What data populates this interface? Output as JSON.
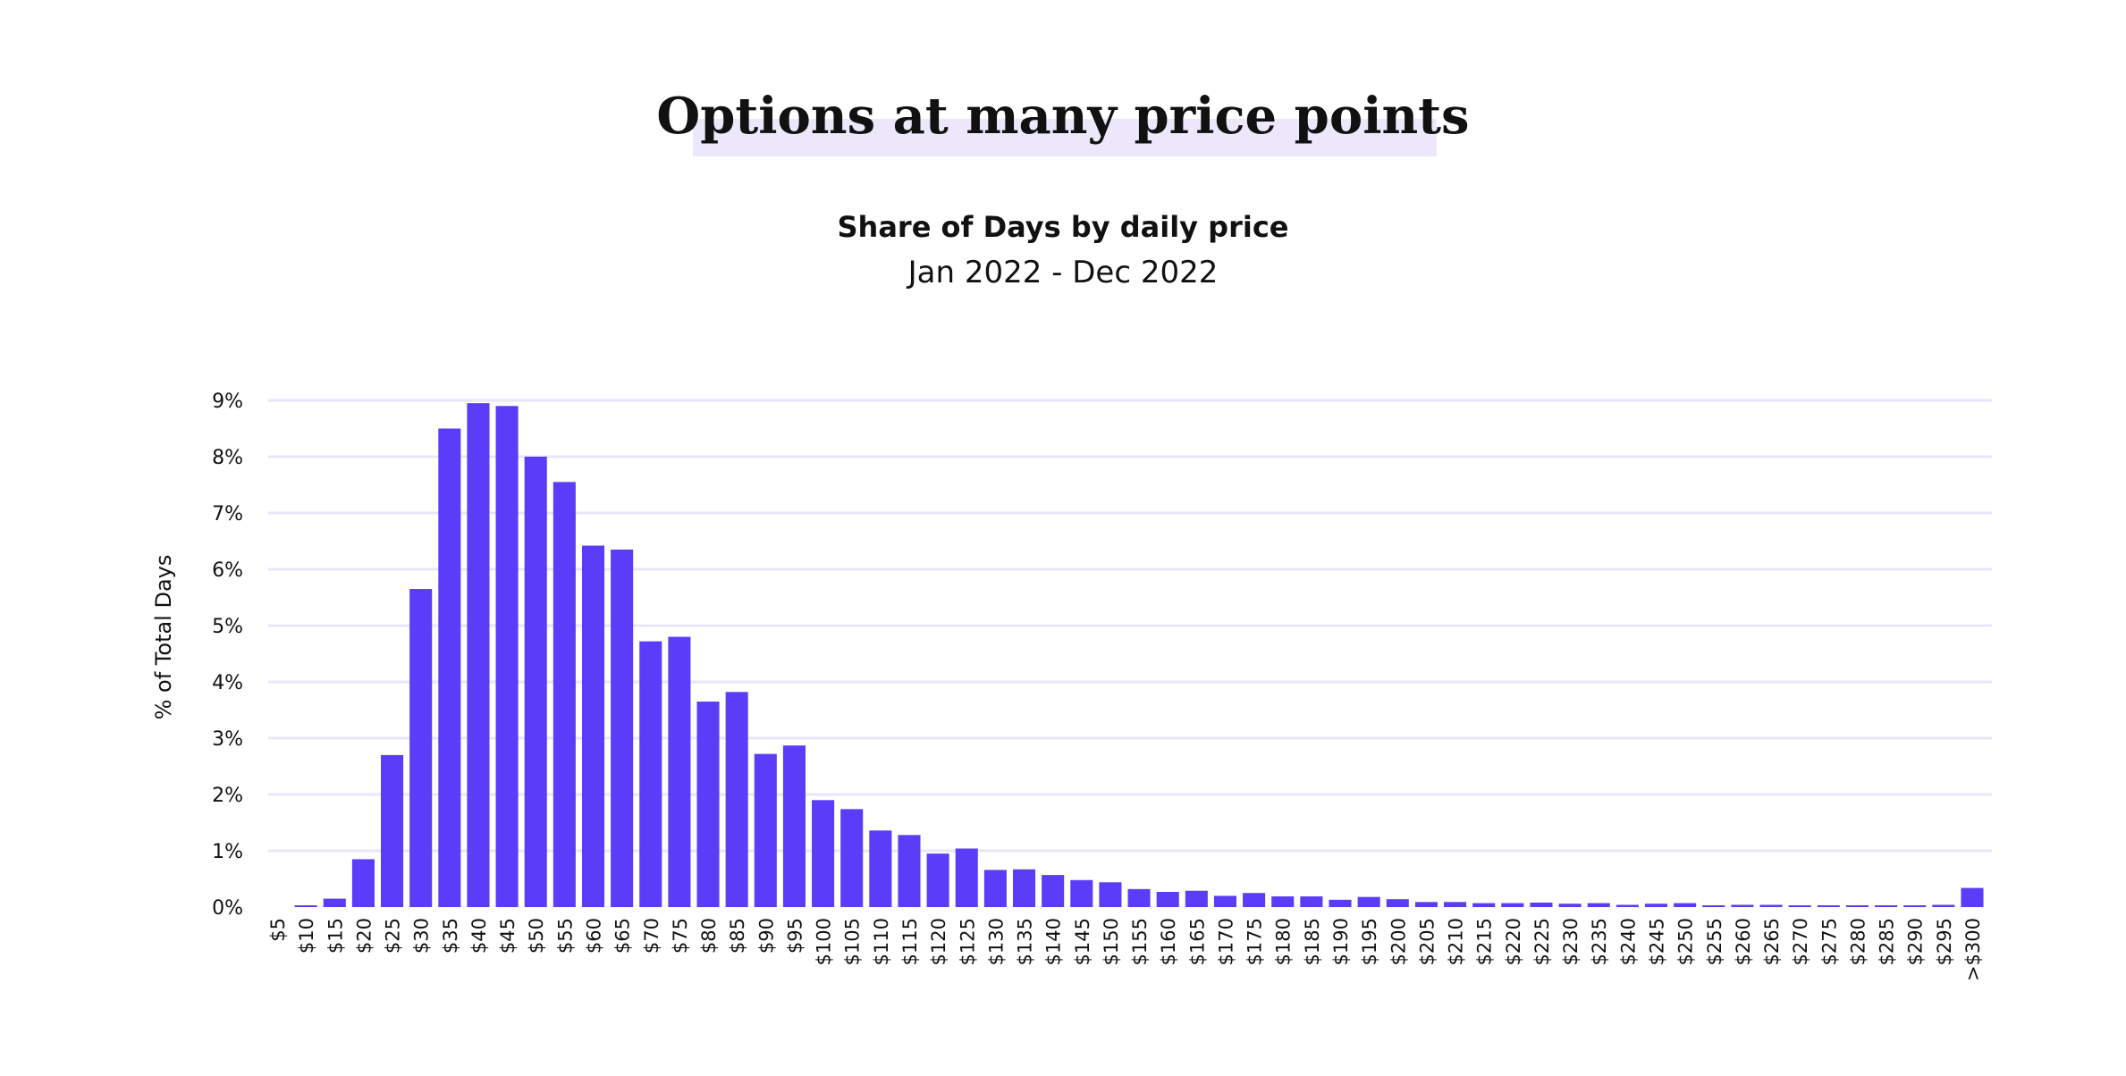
{
  "header": {
    "headline": "Options at many price points"
  },
  "colors": {
    "bar": "#5b3cf8",
    "grid": "#e9e6fb",
    "highlight": "#ece7fb",
    "text": "#111111"
  },
  "chart_data": {
    "type": "bar",
    "title": "Share of Days by daily price",
    "subtitle": "Jan 2022 - Dec 2022",
    "xlabel": "",
    "ylabel": "% of Total Days",
    "ylim": [
      0,
      9
    ],
    "yticks": [
      0,
      1,
      2,
      3,
      4,
      5,
      6,
      7,
      8,
      9
    ],
    "ytick_labels": [
      "0%",
      "1%",
      "2%",
      "3%",
      "4%",
      "5%",
      "6%",
      "7%",
      "8%",
      "9%"
    ],
    "grid": true,
    "categories": [
      "$5",
      "$10",
      "$15",
      "$20",
      "$25",
      "$30",
      "$35",
      "$40",
      "$45",
      "$50",
      "$55",
      "$60",
      "$65",
      "$70",
      "$75",
      "$80",
      "$85",
      "$90",
      "$95",
      "$100",
      "$105",
      "$110",
      "$115",
      "$120",
      "$125",
      "$130",
      "$135",
      "$140",
      "$145",
      "$150",
      "$155",
      "$160",
      "$165",
      "$170",
      "$175",
      "$180",
      "$185",
      "$190",
      "$195",
      "$200",
      "$205",
      "$210",
      "$215",
      "$220",
      "$225",
      "$230",
      "$235",
      "$240",
      "$245",
      "$250",
      "$255",
      "$260",
      "$265",
      "$270",
      "$275",
      "$280",
      "$285",
      "$290",
      "$295",
      ">$300"
    ],
    "values": [
      0,
      0.02,
      0.15,
      0.85,
      2.7,
      5.65,
      8.5,
      8.95,
      8.9,
      8.0,
      7.55,
      6.42,
      6.35,
      4.72,
      4.8,
      3.65,
      3.82,
      2.72,
      2.87,
      1.9,
      1.74,
      1.36,
      1.28,
      0.95,
      1.04,
      0.66,
      0.67,
      0.57,
      0.48,
      0.44,
      0.32,
      0.27,
      0.29,
      0.2,
      0.25,
      0.19,
      0.19,
      0.13,
      0.18,
      0.14,
      0.09,
      0.09,
      0.07,
      0.07,
      0.08,
      0.06,
      0.07,
      0.04,
      0.06,
      0.07,
      0.02,
      0.04,
      0.04,
      0.02,
      0.02,
      0.02,
      0.02,
      0.01,
      0.04,
      0.34
    ]
  }
}
